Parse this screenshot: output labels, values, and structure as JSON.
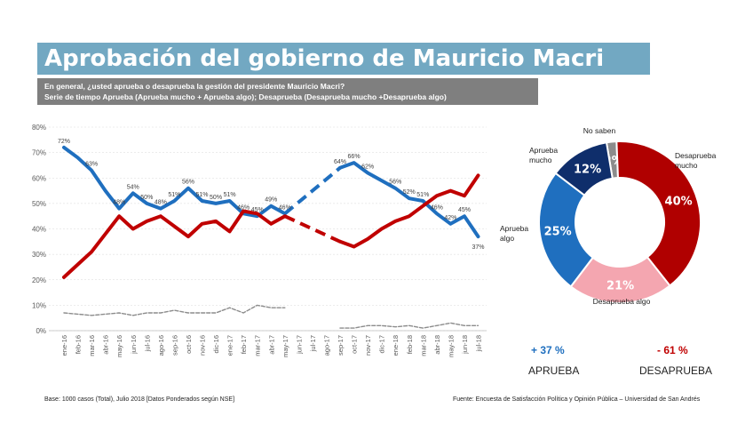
{
  "header": {
    "title": "Aprobación del gobierno de Mauricio Macri",
    "subtitle_1": "En general, ¿usted aprueba o desaprueba la gestión del presidente Mauricio Macri?",
    "subtitle_2": "Serie de tiempo Aprueba (Aprueba mucho + Aprueba algo); Desaprueba (Desaprueba mucho +Desaprueba algo)"
  },
  "colors": {
    "aprueba": "#1f6fbf",
    "desaprueba": "#c00000",
    "no_saben": "#8c8c8c",
    "title_bar": "#72a8c2",
    "subtitle_bar": "#7f7f7f"
  },
  "chart_data": [
    {
      "type": "line",
      "yticks": [
        "0%",
        "10%",
        "20%",
        "30%",
        "40%",
        "50%",
        "60%",
        "70%",
        "80%"
      ],
      "ylim": [
        0,
        80
      ],
      "grid": true,
      "categories": [
        "ene-16",
        "feb-16",
        "mar-16",
        "abr-16",
        "may-16",
        "jun-16",
        "jul-16",
        "ago-16",
        "sep-16",
        "oct-16",
        "nov-16",
        "dic-16",
        "ene-17",
        "feb-17",
        "mar-17",
        "abr-17",
        "may-17",
        "jun-17",
        "jul-17",
        "ago-17",
        "sep-17",
        "oct-17",
        "nov-17",
        "dic-17",
        "ene-18",
        "feb-18",
        "mar-18",
        "abr-18",
        "may-18",
        "jun-18",
        "jul-18"
      ],
      "series": [
        {
          "key": "aprueba",
          "values": [
            72,
            68,
            63,
            55,
            48,
            54,
            50,
            48,
            51,
            56,
            51,
            50,
            51,
            46,
            45,
            49,
            46,
            null,
            null,
            null,
            64,
            66,
            62,
            59,
            56,
            52,
            51,
            46,
            42,
            45,
            37
          ]
        },
        {
          "key": "desaprueba",
          "values": [
            21,
            26,
            31,
            38,
            45,
            40,
            43,
            45,
            41,
            37,
            42,
            43,
            39,
            47,
            46,
            42,
            45,
            null,
            null,
            null,
            35,
            33,
            36,
            40,
            43,
            45,
            49,
            53,
            55,
            53,
            61
          ]
        },
        {
          "key": "no_saben",
          "values": [
            7,
            6.5,
            6,
            6.5,
            7,
            6,
            7,
            7,
            8,
            7,
            7,
            7,
            9,
            7,
            10,
            9,
            9,
            null,
            null,
            null,
            1,
            1,
            2,
            2,
            1.5,
            2,
            1,
            2,
            3,
            2,
            2
          ]
        }
      ],
      "gaps": [
        {
          "series": "aprueba",
          "from": [
            16,
            46
          ],
          "to": [
            20,
            64
          ]
        },
        {
          "series": "desaprueba",
          "from": [
            16,
            45
          ],
          "to": [
            20,
            35
          ]
        }
      ],
      "data_labels": [
        {
          "i": 0,
          "text": "72%"
        },
        {
          "i": 2,
          "text": "63%"
        },
        {
          "i": 4,
          "text": "48%"
        },
        {
          "i": 5,
          "text": "54%"
        },
        {
          "i": 6,
          "text": "50%"
        },
        {
          "i": 7,
          "text": "48%"
        },
        {
          "i": 8,
          "text": "51%"
        },
        {
          "i": 9,
          "text": "56%"
        },
        {
          "i": 10,
          "text": "51%"
        },
        {
          "i": 11,
          "text": "50%"
        },
        {
          "i": 12,
          "text": "51%"
        },
        {
          "i": 13,
          "text": "46%"
        },
        {
          "i": 14,
          "text": "45%"
        },
        {
          "i": 15,
          "text": "49%"
        },
        {
          "i": 16,
          "text": "46%"
        },
        {
          "i": 20,
          "text": "64%"
        },
        {
          "i": 21,
          "text": "66%"
        },
        {
          "i": 22,
          "text": "62%"
        },
        {
          "i": 24,
          "text": "56%"
        },
        {
          "i": 25,
          "text": "52%"
        },
        {
          "i": 26,
          "text": "51%"
        },
        {
          "i": 27,
          "text": "46%"
        },
        {
          "i": 28,
          "text": "42%"
        },
        {
          "i": 29,
          "text": "45%"
        },
        {
          "i": 30,
          "text": "37%"
        }
      ]
    },
    {
      "type": "pie",
      "donut": true,
      "slices": [
        {
          "key": "no_saben",
          "label": "No saben",
          "value": 2,
          "text": "2%",
          "color": "#8c8c8c"
        },
        {
          "key": "desaprueba_mucho",
          "label": "Desaprueba mucho",
          "value": 40,
          "text": "40%",
          "color": "#b00000"
        },
        {
          "key": "desaprueba_algo",
          "label": "Desaprueba algo",
          "value": 21,
          "text": "21%",
          "color": "#f4a6b0"
        },
        {
          "key": "aprueba_algo",
          "label": "Aprueba algo",
          "value": 25,
          "text": "25%",
          "color": "#1f6fbf"
        },
        {
          "key": "aprueba_mucho",
          "label": "Aprueba mucho",
          "value": 12,
          "text": "12%",
          "color": "#0f2e6b"
        }
      ]
    }
  ],
  "summary": {
    "aprueba_value": "+ 37 %",
    "aprueba_label": "APRUEBA",
    "desaprueba_value": "- 61 %",
    "desaprueba_label": "DESAPRUEBA"
  },
  "footer": {
    "base": "Base: 1000 casos (Total), Julio 2018 [Datos Ponderados según NSE]",
    "source": "Fuente: Encuesta de Satisfacción Política y Opinión Pública – Universidad de San Andrés"
  }
}
